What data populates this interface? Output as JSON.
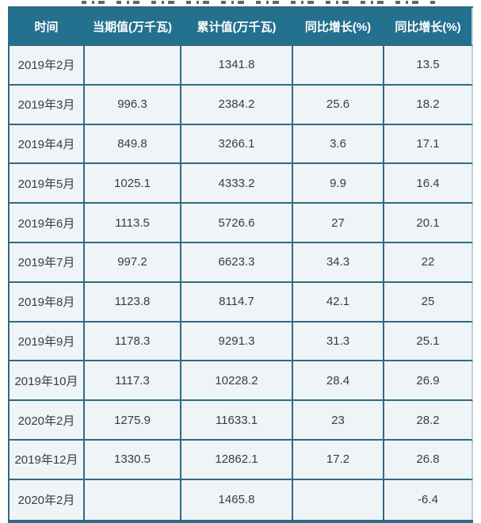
{
  "colors": {
    "header_bg": "#24708f",
    "header_text": "#ffffff",
    "border": "#2e6b82",
    "border_light": "#b9d2dd",
    "cell_bg": "#eff4f7",
    "cell_text": "#3c3c3c"
  },
  "chart_data": {
    "type": "table",
    "columns": [
      "时间",
      "当期值(万千瓦)",
      "累计值(万千瓦)",
      "同比增长(%)",
      "同比增长(%)"
    ],
    "rows": [
      [
        "2019年2月",
        "",
        "1341.8",
        "",
        "13.5"
      ],
      [
        "2019年3月",
        "996.3",
        "2384.2",
        "25.6",
        "18.2"
      ],
      [
        "2019年4月",
        "849.8",
        "3266.1",
        "3.6",
        "17.1"
      ],
      [
        "2019年5月",
        "1025.1",
        "4333.2",
        "9.9",
        "16.4"
      ],
      [
        "2019年6月",
        "1113.5",
        "5726.6",
        "27",
        "20.1"
      ],
      [
        "2019年7月",
        "997.2",
        "6623.3",
        "34.3",
        "22"
      ],
      [
        "2019年8月",
        "1123.8",
        "8114.7",
        "42.1",
        "25"
      ],
      [
        "2019年9月",
        "1178.3",
        "9291.3",
        "31.3",
        "25.1"
      ],
      [
        "2019年10月",
        "1117.3",
        "10228.2",
        "28.4",
        "26.9"
      ],
      [
        "2020年2月",
        "1275.9",
        "11633.1",
        "23",
        "28.2"
      ],
      [
        "2019年12月",
        "1330.5",
        "12862.1",
        "17.2",
        "26.8"
      ],
      [
        "2020年2月",
        "",
        "1465.8",
        "",
        "-6.4"
      ]
    ]
  }
}
